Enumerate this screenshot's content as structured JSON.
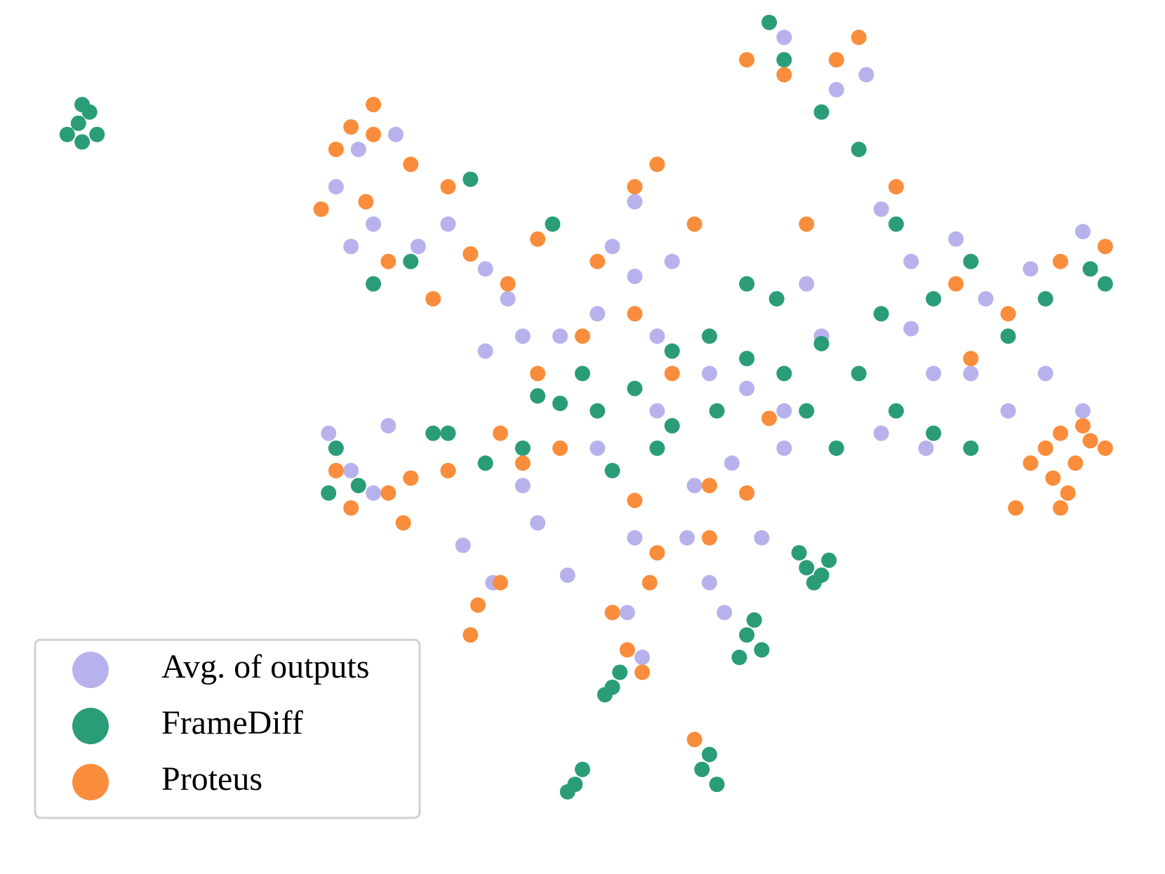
{
  "chart_data": {
    "type": "scatter",
    "xlim": [
      0,
      156
    ],
    "ylim": [
      0,
      117
    ],
    "legend": "lower left",
    "series": [
      {
        "name": "Avg. of outputs",
        "color": "#b8b2ec",
        "x": [
          45,
          48,
          53,
          50,
          56,
          47,
          60,
          65,
          70,
          68,
          75,
          80,
          85,
          90,
          88,
          95,
          100,
          105,
          110,
          108,
          112,
          105,
          116,
          118,
          122,
          128,
          132,
          138,
          145,
          140,
          135,
          124,
          118,
          105,
          44,
          47,
          52,
          50,
          62,
          66,
          72,
          76,
          85,
          84,
          86,
          92,
          97,
          102,
          95,
          65,
          85,
          82,
          93,
          98,
          88,
          80,
          70,
          130,
          125,
          122,
          145
        ],
        "values": [
          92,
          97,
          99,
          87,
          84,
          84,
          87,
          81,
          72,
          77,
          72,
          75,
          80,
          82,
          72,
          67,
          65,
          62,
          72,
          79,
          105,
          112,
          107,
          89,
          82,
          85,
          77,
          81,
          86,
          67,
          62,
          57,
          59,
          57,
          59,
          54,
          60,
          51,
          44,
          39,
          47,
          40,
          45,
          35,
          29,
          45,
          35,
          45,
          39,
          70,
          90,
          84,
          52,
          55,
          62,
          57,
          52,
          67,
          67,
          73,
          62
        ]
      },
      {
        "name": "FrameDiff",
        "color": "#2a9d78",
        "x": [
          10.5,
          12,
          11,
          13,
          9,
          11,
          108,
          110,
          107,
          111,
          109,
          100,
          102,
          99,
          101,
          77,
          78,
          76,
          94,
          96,
          95,
          82,
          83,
          81,
          75,
          78,
          80,
          72,
          85,
          90,
          95,
          100,
          105,
          110,
          115,
          120,
          125,
          130,
          112,
          118,
          125,
          130,
          120,
          115,
          110,
          105,
          103,
          148,
          146,
          140,
          135,
          45,
          48,
          44,
          60,
          65,
          70,
          88,
          82,
          100,
          104,
          96,
          108,
          74,
          63,
          55,
          50,
          58,
          90
        ],
        "values": [
          100.5,
          102,
          98,
          99,
          99,
          103,
          41,
          40,
          43,
          42,
          39,
          32,
          30,
          29,
          34,
          12,
          14,
          11,
          14,
          12,
          16,
          25,
          27,
          24,
          63,
          67,
          62,
          64,
          65,
          70,
          72,
          69,
          67,
          71,
          67,
          62,
          59,
          57,
          57,
          75,
          77,
          82,
          87,
          97,
          102,
          109,
          114,
          79,
          81,
          77,
          72,
          57,
          52,
          51,
          59,
          55,
          57,
          57,
          54,
          79,
          77,
          62,
          62,
          87,
          93,
          82,
          79,
          59,
          60
        ]
      },
      {
        "name": "Proteus",
        "color": "#f98d3b",
        "x": [
          45,
          50,
          55,
          49,
          52,
          58,
          43,
          60,
          63,
          68,
          72,
          80,
          85,
          88,
          93,
          78,
          85,
          90,
          72,
          67,
          70,
          64,
          63,
          67,
          82,
          84,
          87,
          86,
          85,
          88,
          95,
          100,
          103,
          140,
          142,
          144,
          146,
          141,
          143,
          145,
          138,
          148,
          142,
          136,
          130,
          128,
          135,
          142,
          148,
          112,
          105,
          100,
          115,
          120,
          108,
          95,
          47,
          52,
          55,
          45,
          54,
          75,
          60,
          93,
          50,
          47
        ],
        "values": [
          97,
          103,
          95,
          90,
          82,
          77,
          89,
          92,
          83,
          79,
          85,
          82,
          92,
          95,
          87,
          72,
          75,
          67,
          67,
          59,
          55,
          36,
          32,
          39,
          35,
          30,
          39,
          27,
          50,
          43,
          45,
          51,
          61,
          57,
          59,
          55,
          58,
          53,
          51,
          60,
          55,
          57,
          49,
          49,
          69,
          79,
          75,
          82,
          84,
          109,
          107,
          109,
          112,
          92,
          87,
          52,
          49,
          51,
          53,
          54,
          47,
          57,
          54,
          18,
          99,
          100
        ]
      }
    ]
  }
}
